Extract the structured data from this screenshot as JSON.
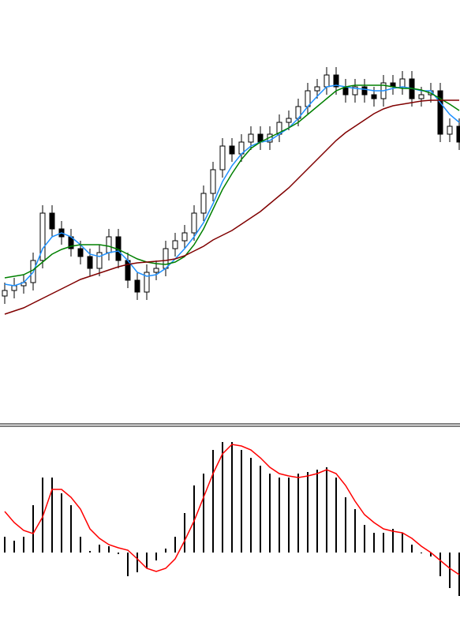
{
  "chart_data": [
    {
      "type": "candlestick",
      "ylim": [
        0,
        540
      ],
      "up_color": "#ffffff",
      "down_color": "#000000",
      "edge_color": "#000000",
      "open": [
        165,
        172,
        178,
        182,
        210,
        270,
        250,
        240,
        225,
        215,
        200,
        220,
        240,
        210,
        185,
        170,
        195,
        200,
        225,
        235,
        245,
        270,
        295,
        325,
        355,
        345,
        360,
        370,
        360,
        370,
        385,
        390,
        405,
        425,
        430,
        445,
        430,
        420,
        430,
        420,
        415,
        435,
        430,
        440,
        415,
        420,
        425,
        370,
        380
      ],
      "high": [
        182,
        188,
        192,
        220,
        280,
        280,
        260,
        250,
        235,
        225,
        230,
        250,
        250,
        220,
        195,
        205,
        210,
        235,
        245,
        255,
        280,
        305,
        335,
        365,
        365,
        370,
        380,
        380,
        380,
        395,
        400,
        415,
        435,
        440,
        455,
        455,
        440,
        440,
        440,
        430,
        445,
        445,
        450,
        450,
        430,
        435,
        435,
        390,
        390
      ],
      "low": [
        155,
        162,
        168,
        172,
        200,
        240,
        230,
        215,
        205,
        190,
        190,
        210,
        200,
        175,
        160,
        160,
        185,
        190,
        215,
        225,
        235,
        260,
        285,
        315,
        335,
        335,
        350,
        350,
        350,
        360,
        375,
        380,
        395,
        415,
        420,
        420,
        410,
        410,
        410,
        405,
        405,
        420,
        420,
        405,
        405,
        410,
        360,
        360,
        350
      ],
      "close": [
        172,
        178,
        182,
        210,
        270,
        250,
        240,
        225,
        215,
        200,
        220,
        240,
        210,
        185,
        170,
        195,
        200,
        225,
        235,
        245,
        270,
        295,
        325,
        355,
        345,
        360,
        370,
        360,
        370,
        385,
        390,
        405,
        425,
        430,
        445,
        430,
        420,
        430,
        420,
        415,
        435,
        430,
        440,
        415,
        420,
        425,
        370,
        380,
        360
      ],
      "series": [
        {
          "color": "#1e90ff",
          "values": [
            180,
            178,
            182,
            195,
            225,
            240,
            245,
            240,
            230,
            218,
            215,
            220,
            222,
            210,
            195,
            190,
            192,
            200,
            212,
            225,
            240,
            258,
            282,
            310,
            330,
            345,
            355,
            360,
            362,
            370,
            378,
            390,
            405,
            418,
            430,
            432,
            430,
            428,
            427,
            425,
            425,
            428,
            430,
            428,
            425,
            425,
            410,
            395,
            385
          ]
        },
        {
          "color": "#008000",
          "values": [
            188,
            190,
            192,
            198,
            208,
            218,
            224,
            228,
            230,
            230,
            230,
            228,
            224,
            218,
            212,
            208,
            206,
            205,
            208,
            215,
            230,
            250,
            275,
            300,
            320,
            338,
            352,
            360,
            366,
            372,
            378,
            385,
            395,
            405,
            415,
            425,
            430,
            432,
            432,
            432,
            432,
            430,
            428,
            428,
            426,
            422,
            415,
            408,
            400
          ]
        },
        {
          "color": "#800000",
          "values": [
            142,
            146,
            150,
            156,
            162,
            168,
            174,
            180,
            186,
            190,
            194,
            198,
            202,
            205,
            207,
            208,
            209,
            210,
            212,
            216,
            222,
            228,
            236,
            242,
            248,
            256,
            264,
            272,
            282,
            292,
            302,
            314,
            326,
            338,
            350,
            362,
            372,
            380,
            388,
            396,
            402,
            406,
            408,
            410,
            412,
            413,
            413,
            413,
            413
          ]
        }
      ]
    },
    {
      "type": "macd",
      "ylim": [
        -88,
        155
      ],
      "color": "#000000",
      "values": [
        20,
        15,
        20,
        60,
        95,
        95,
        75,
        60,
        20,
        2,
        10,
        8,
        -2,
        -30,
        -25,
        -20,
        -10,
        5,
        20,
        50,
        85,
        100,
        130,
        140,
        140,
        130,
        120,
        110,
        100,
        95,
        95,
        100,
        102,
        105,
        108,
        95,
        70,
        55,
        35,
        25,
        25,
        30,
        25,
        10,
        -1,
        -5,
        -30,
        -45,
        -55
      ],
      "series": [
        {
          "color": "#ff0000",
          "values": [
            52,
            38,
            28,
            24,
            45,
            80,
            80,
            70,
            55,
            30,
            18,
            10,
            6,
            3,
            -8,
            -20,
            -24,
            -20,
            -8,
            15,
            40,
            70,
            100,
            125,
            137,
            135,
            130,
            120,
            108,
            100,
            97,
            95,
            97,
            100,
            105,
            100,
            85,
            65,
            48,
            38,
            30,
            27,
            25,
            18,
            8,
            0,
            -10,
            -20,
            -28
          ]
        }
      ]
    }
  ]
}
